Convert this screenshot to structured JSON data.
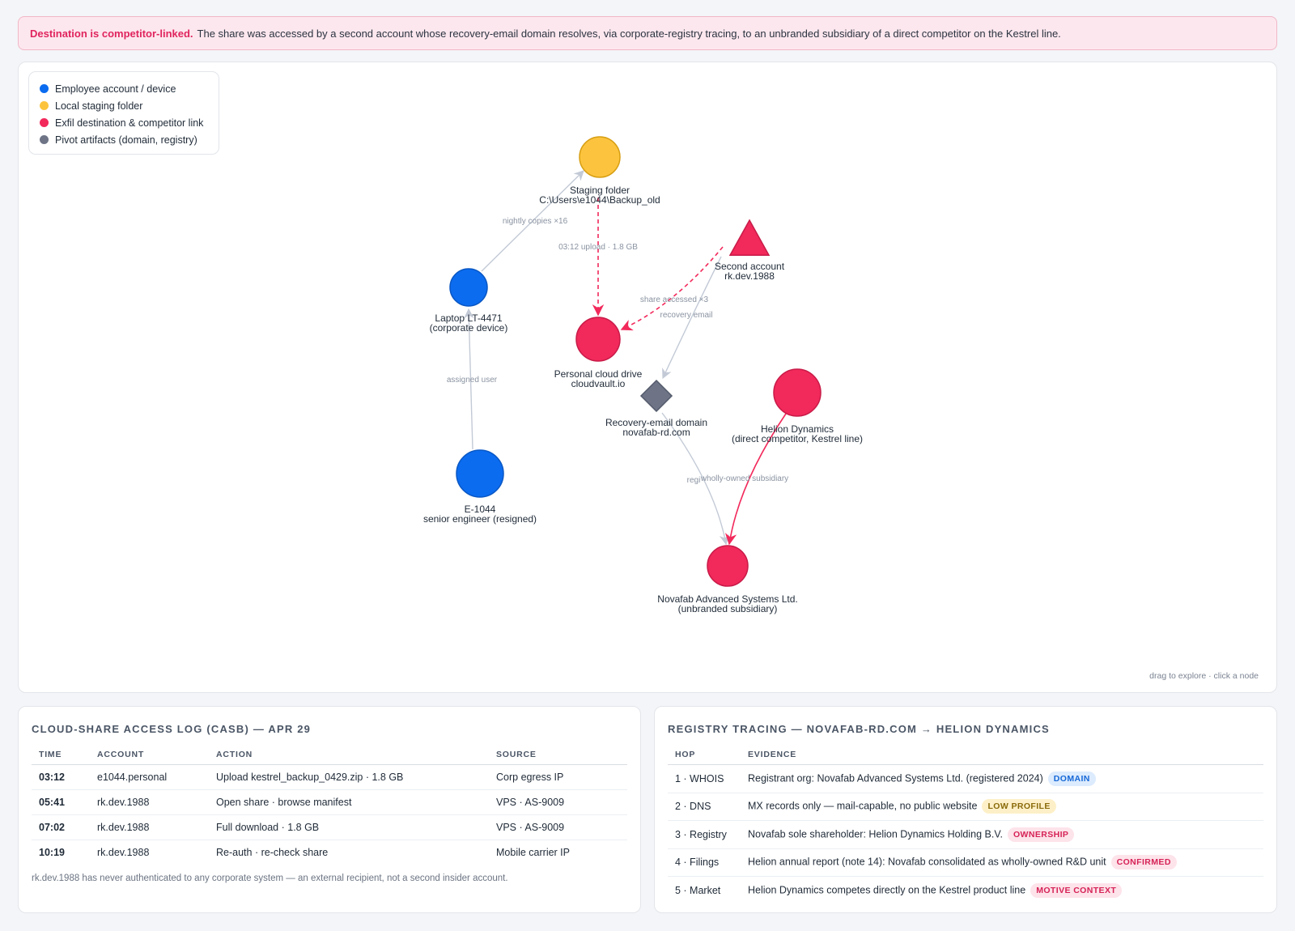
{
  "alert": {
    "title": "Destination is competitor-linked.",
    "text": "The share was accessed by a second account whose recovery-email domain resolves, via corporate-registry tracing, to an unbranded subsidiary of a direct competitor on the Kestrel line."
  },
  "legend": [
    {
      "label": "Employee account / device",
      "color": "#0b6cf0"
    },
    {
      "label": "Local staging folder",
      "color": "#fcc43e"
    },
    {
      "label": "Exfil destination & competitor link",
      "color": "#f2295b"
    },
    {
      "label": "Pivot artifacts (domain, registry)",
      "color": "#6e7486"
    }
  ],
  "graph_hint": "drag to explore · click a node",
  "graph": {
    "nodes": [
      {
        "id": "staging",
        "kind": "circle",
        "color": "#fcc43e",
        "stroke": "#d79e12",
        "lines": [
          "Staging folder",
          "C:\\Users\\e1044\\Backup_old"
        ]
      },
      {
        "id": "second",
        "kind": "triangle",
        "color": "#f2295b",
        "stroke": "#c81b48",
        "lines": [
          "Second account",
          "rk.dev.1988"
        ]
      },
      {
        "id": "laptop",
        "kind": "circle",
        "color": "#0b6cf0",
        "stroke": "#0957c4",
        "lines": [
          "Laptop LT-4471",
          "(corporate device)"
        ]
      },
      {
        "id": "cloud",
        "kind": "circle",
        "color": "#f2295b",
        "stroke": "#c81b48",
        "lines": [
          "Personal cloud drive",
          "cloudvault.io"
        ]
      },
      {
        "id": "domain",
        "kind": "diamond",
        "color": "#6e7486",
        "stroke": "#535a6b",
        "lines": [
          "Recovery-email domain",
          "novafab-rd.com"
        ]
      },
      {
        "id": "helion",
        "kind": "circle",
        "color": "#f2295b",
        "stroke": "#c81b48",
        "lines": [
          "Helion Dynamics",
          "(direct competitor, Kestrel line)"
        ]
      },
      {
        "id": "e1044",
        "kind": "circle",
        "color": "#0b6cf0",
        "stroke": "#0957c4",
        "lines": [
          "E-1044",
          "senior engineer (resigned)"
        ]
      },
      {
        "id": "novafab",
        "kind": "circle",
        "color": "#f2295b",
        "stroke": "#c81b48",
        "lines": [
          "Novafab Advanced Systems Ltd.",
          "(unbranded subsidiary)"
        ]
      }
    ],
    "edges": [
      {
        "from": "laptop",
        "to": "staging",
        "label": "nightly copies ×16",
        "style": "solid-gray"
      },
      {
        "from": "staging",
        "to": "cloud",
        "label": "03:12 upload · 1.8 GB",
        "style": "dashed-red"
      },
      {
        "from": "second",
        "to": "cloud",
        "label": "share accessed ×3",
        "style": "dashed-red"
      },
      {
        "from": "second",
        "to": "domain",
        "label": "recovery email",
        "style": "solid-gray"
      },
      {
        "from": "e1044",
        "to": "laptop",
        "label": "assigned user",
        "style": "solid-gray"
      },
      {
        "from": "domain",
        "to": "novafab",
        "label": "regi",
        "style": "solid-gray"
      },
      {
        "from": "helion",
        "to": "novafab",
        "label": "wholly-owned subsidiary",
        "style": "solid-red"
      }
    ]
  },
  "access_log": {
    "title": "Cloud-share access log (CASB) — Apr 29",
    "columns": [
      "TIME",
      "ACCOUNT",
      "ACTION",
      "SOURCE"
    ],
    "rows": [
      {
        "time": "03:12",
        "account": "e1044.personal",
        "action": "Upload kestrel_backup_0429.zip · 1.8 GB",
        "source": "Corp egress IP"
      },
      {
        "time": "05:41",
        "account": "rk.dev.1988",
        "action": "Open share · browse manifest",
        "source": "VPS · AS-9009"
      },
      {
        "time": "07:02",
        "account": "rk.dev.1988",
        "action": "Full download · 1.8 GB",
        "source": "VPS · AS-9009"
      },
      {
        "time": "10:19",
        "account": "rk.dev.1988",
        "action": "Re-auth · re-check share",
        "source": "Mobile carrier IP"
      }
    ],
    "note": "rk.dev.1988 has never authenticated to any corporate system — an external recipient, not a second insider account."
  },
  "registry": {
    "title": "Registry tracing — novafab-rd.com → Helion Dynamics",
    "columns": [
      "HOP",
      "EVIDENCE"
    ],
    "rows": [
      {
        "hop": "1 · WHOIS",
        "evidence": "Registrant org: Novafab Advanced Systems Ltd. (registered 2024)",
        "badge": "DOMAIN",
        "badge_bg": "#dcebfd",
        "badge_fg": "#1668d8"
      },
      {
        "hop": "2 · DNS",
        "evidence": "MX records only — mail-capable, no public website",
        "badge": "LOW PROFILE",
        "badge_bg": "#fdf0c8",
        "badge_fg": "#8a6a0a"
      },
      {
        "hop": "3 · Registry",
        "evidence": "Novafab sole shareholder: Helion Dynamics Holding B.V.",
        "badge": "OWNERSHIP",
        "badge_bg": "#fde3ea",
        "badge_fg": "#d62256"
      },
      {
        "hop": "4 · Filings",
        "evidence": "Helion annual report (note 14): Novafab consolidated as wholly-owned R&D unit",
        "badge": "CONFIRMED",
        "badge_bg": "#fde3ea",
        "badge_fg": "#d62256"
      },
      {
        "hop": "5 · Market",
        "evidence": "Helion Dynamics competes directly on the Kestrel product line",
        "badge": "MOTIVE CONTEXT",
        "badge_bg": "#fde3ea",
        "badge_fg": "#d62256"
      }
    ]
  }
}
